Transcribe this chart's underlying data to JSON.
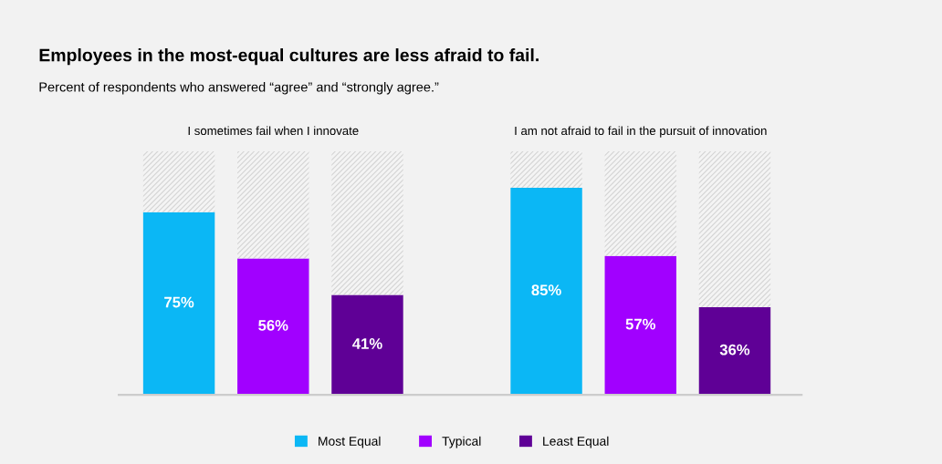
{
  "chart_data": {
    "type": "bar",
    "title": "Employees in the most-equal cultures are less afraid to fail.",
    "subtitle": "Percent of respondents who answered “agree” and “strongly agree.”",
    "annotations": [
      "I sometimes fail when I innovate",
      "I am not afraid to fail in the pursuit of innovation"
    ],
    "categories": [
      null,
      null,
      null,
      null,
      null,
      null
    ],
    "stacked": true,
    "series": [
      {
        "name": "Most Equal",
        "color": "#0bb7f5",
        "values": [
          75,
          null,
          null,
          85,
          null,
          null
        ],
        "value_labels": [
          "75%",
          null,
          null,
          "85%",
          null,
          null
        ]
      },
      {
        "name": "Typical",
        "color": "#a100ff",
        "values": [
          null,
          56,
          null,
          null,
          57,
          null
        ],
        "value_labels": [
          null,
          "56%",
          null,
          null,
          "57%",
          null
        ]
      },
      {
        "name": "Least Equal",
        "color": "#5f0096",
        "values": [
          null,
          null,
          41,
          null,
          null,
          36
        ],
        "value_labels": [
          null,
          null,
          "41%",
          null,
          null,
          "36%"
        ]
      },
      {
        "color": "#f4f4f4",
        "values": [
          25,
          44,
          59,
          15,
          43,
          64
        ]
      }
    ],
    "legend": "bottom"
  }
}
